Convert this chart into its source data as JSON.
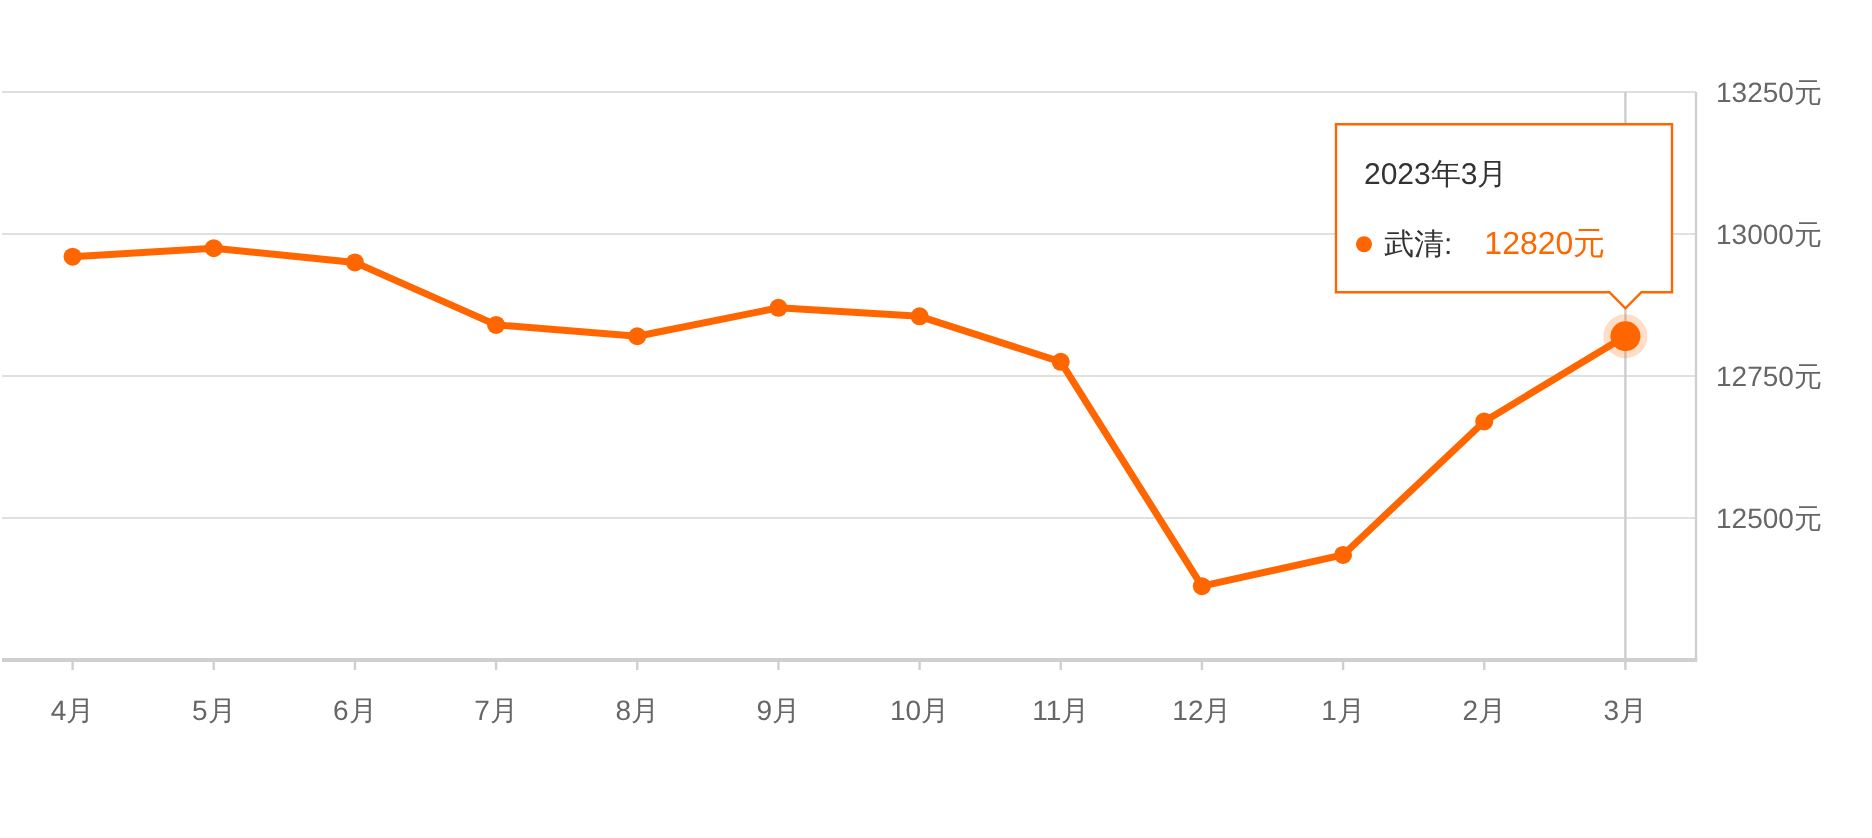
{
  "chart_data": {
    "type": "line",
    "categories": [
      "4月",
      "5月",
      "6月",
      "7月",
      "8月",
      "9月",
      "10月",
      "11月",
      "12月",
      "1月",
      "2月",
      "3月"
    ],
    "series": [
      {
        "name": "武清:",
        "color": "#ff6600",
        "values": [
          12960,
          12975,
          12950,
          12840,
          12820,
          12870,
          12855,
          12775,
          12380,
          12435,
          12670,
          12820
        ],
        "value_labels": [
          null,
          null,
          null,
          null,
          null,
          null,
          null,
          null,
          null,
          null,
          null,
          "12820元"
        ]
      }
    ],
    "ylim": [
      12250,
      13250
    ],
    "yticks": [
      {
        "value": 12500,
        "label": "12500元"
      },
      {
        "value": 12750,
        "label": "12750元"
      },
      {
        "value": 13000,
        "label": "13000元"
      },
      {
        "value": 13250,
        "label": "13250元"
      }
    ],
    "grid": "y",
    "marker": "circle",
    "line_style": "solid",
    "ref_lines": [
      {
        "axis": "x",
        "value": "3月",
        "color": "#cccccc"
      }
    ],
    "annotations": [
      "2023年3月"
    ]
  }
}
